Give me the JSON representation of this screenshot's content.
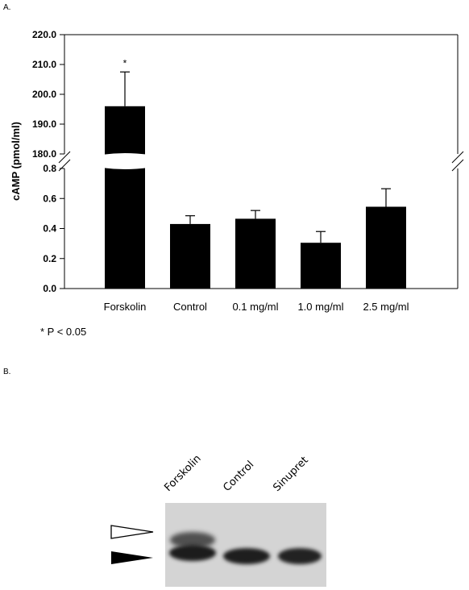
{
  "panel_a_label": "A.",
  "panel_b_label": "B.",
  "note": "* P < 0.05",
  "chart_data": {
    "type": "bar",
    "categories": [
      "Forskolin",
      "Control",
      "0.1 mg/ml",
      "1.0 mg/ml",
      "2.5 mg/ml"
    ],
    "values": [
      196.0,
      0.43,
      0.465,
      0.305,
      0.545
    ],
    "errors": [
      11.5,
      0.055,
      0.055,
      0.075,
      0.12
    ],
    "significance": [
      "*",
      "",
      "",
      "",
      ""
    ],
    "ylabel": "cAMP (pmol/ml)",
    "axis_break": true,
    "lower_segment": {
      "ylim": [
        0.0,
        0.8
      ],
      "ticks": [
        "0.0",
        "0.2",
        "0.4",
        "0.6",
        "0.8"
      ]
    },
    "upper_segment": {
      "ylim": [
        180.0,
        220.0
      ],
      "ticks": [
        "180.0",
        "190.0",
        "200.0",
        "210.0",
        "220.0"
      ]
    },
    "bar_color": "#000000",
    "grid": false
  },
  "blot": {
    "lanes": [
      "Forskolin",
      "Control",
      "Sinupret"
    ],
    "open_arrow_color": "#ffffff",
    "filled_arrow_color": "#000000"
  }
}
